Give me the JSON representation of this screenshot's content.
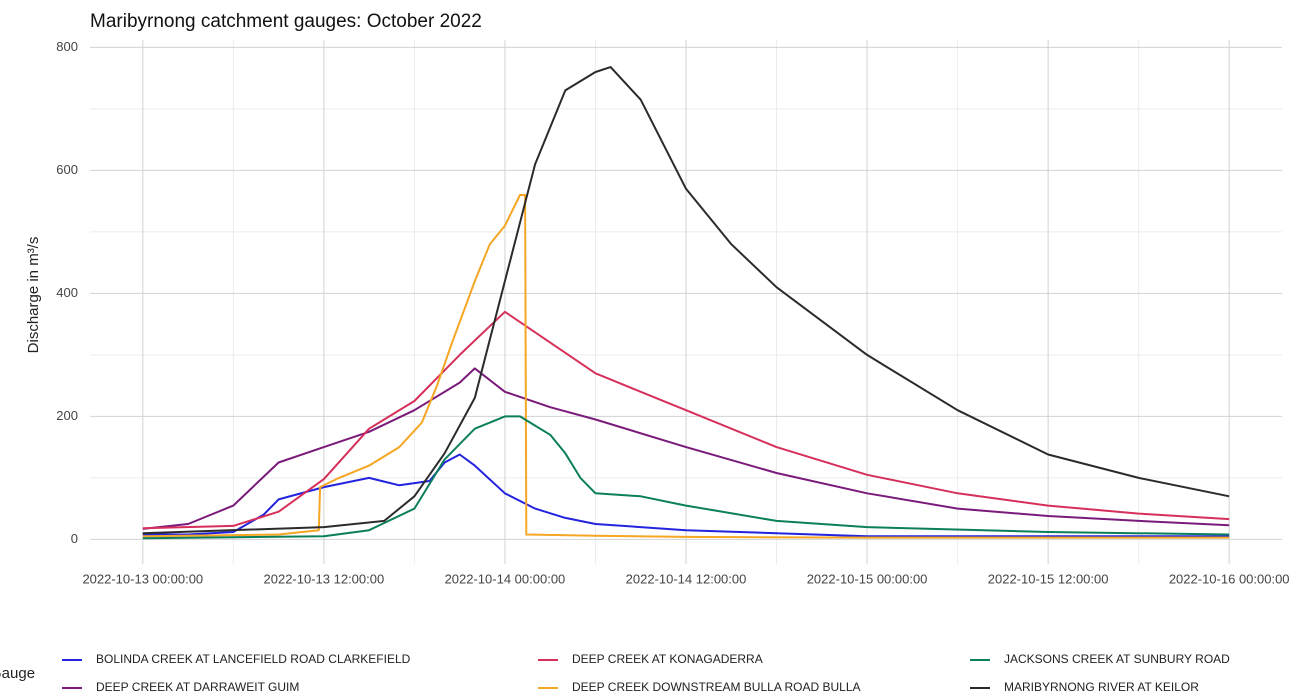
{
  "chart_data": {
    "type": "line",
    "title": "Maribyrnong catchment gauges: October 2022",
    "y_label": "Discharge in m³/s",
    "legend_title": "Gauge",
    "legend": "bottom",
    "grid": true,
    "xlim": [
      "2022-10-12 20:30:00",
      "2022-10-16 03:30:00"
    ],
    "xticks": [
      "2022-10-13 00:00:00",
      "2022-10-13 12:00:00",
      "2022-10-14 00:00:00",
      "2022-10-14 12:00:00",
      "2022-10-15 00:00:00",
      "2022-10-15 12:00:00",
      "2022-10-16 00:00:00"
    ],
    "ylim": [
      -40,
      812
    ],
    "yticks": [
      0,
      200,
      400,
      600,
      800
    ],
    "series": [
      {
        "name": "BOLINDA CREEK AT LANCEFIELD ROAD CLARKEFIELD",
        "color": "#2323e0",
        "x": [
          "2022-10-13 00:00:00",
          "2022-10-13 03:00:00",
          "2022-10-13 06:00:00",
          "2022-10-13 08:00:00",
          "2022-10-13 09:00:00",
          "2022-10-13 12:00:00",
          "2022-10-13 15:00:00",
          "2022-10-13 17:00:00",
          "2022-10-13 19:00:00",
          "2022-10-13 20:00:00",
          "2022-10-13 21:00:00",
          "2022-10-13 22:00:00",
          "2022-10-14 00:00:00",
          "2022-10-14 02:00:00",
          "2022-10-14 04:00:00",
          "2022-10-14 06:00:00",
          "2022-10-14 12:00:00",
          "2022-10-14 18:00:00",
          "2022-10-15 00:00:00",
          "2022-10-15 12:00:00",
          "2022-10-16 00:00:00"
        ],
        "values": [
          8,
          8,
          12,
          40,
          65,
          85,
          100,
          88,
          95,
          125,
          138,
          120,
          75,
          50,
          35,
          25,
          15,
          10,
          5,
          5,
          5
        ]
      },
      {
        "name": "DEEP CREEK AT DARRAWEIT GUIM",
        "color": "#7a1a7a",
        "x": [
          "2022-10-13 00:00:00",
          "2022-10-13 03:00:00",
          "2022-10-13 06:00:00",
          "2022-10-13 09:00:00",
          "2022-10-13 12:00:00",
          "2022-10-13 15:00:00",
          "2022-10-13 18:00:00",
          "2022-10-13 21:00:00",
          "2022-10-13 22:00:00",
          "2022-10-14 00:00:00",
          "2022-10-14 03:00:00",
          "2022-10-14 06:00:00",
          "2022-10-14 12:00:00",
          "2022-10-14 18:00:00",
          "2022-10-15 00:00:00",
          "2022-10-15 06:00:00",
          "2022-10-15 12:00:00",
          "2022-10-15 18:00:00",
          "2022-10-16 00:00:00"
        ],
        "values": [
          17,
          25,
          55,
          125,
          150,
          175,
          210,
          255,
          278,
          240,
          215,
          195,
          150,
          108,
          75,
          50,
          38,
          30,
          23
        ]
      },
      {
        "name": "DEEP CREEK AT KONAGADERRA",
        "color": "#d6305a",
        "x": [
          "2022-10-13 00:00:00",
          "2022-10-13 06:00:00",
          "2022-10-13 09:00:00",
          "2022-10-13 12:00:00",
          "2022-10-13 15:00:00",
          "2022-10-13 18:00:00",
          "2022-10-13 21:00:00",
          "2022-10-14 00:00:00",
          "2022-10-14 03:00:00",
          "2022-10-14 06:00:00",
          "2022-10-14 09:00:00",
          "2022-10-14 12:00:00",
          "2022-10-14 18:00:00",
          "2022-10-15 00:00:00",
          "2022-10-15 06:00:00",
          "2022-10-15 12:00:00",
          "2022-10-15 18:00:00",
          "2022-10-16 00:00:00"
        ],
        "values": [
          18,
          22,
          45,
          98,
          180,
          225,
          300,
          370,
          320,
          270,
          240,
          210,
          150,
          105,
          75,
          55,
          42,
          33
        ]
      },
      {
        "name": "DEEP CREEK DOWNSTREAM BULLA ROAD BULLA",
        "color": "#f5a623",
        "x": [
          "2022-10-13 00:00:00",
          "2022-10-13 09:00:00",
          "2022-10-13 11:40:00",
          "2022-10-13 11:45:00",
          "2022-10-13 13:00:00",
          "2022-10-13 15:00:00",
          "2022-10-13 17:00:00",
          "2022-10-13 18:30:00",
          "2022-10-13 19:30:00",
          "2022-10-13 20:30:00",
          "2022-10-13 22:00:00",
          "2022-10-13 23:00:00",
          "2022-10-14 00:00:00",
          "2022-10-14 01:00:00",
          "2022-10-14 01:20:00",
          "2022-10-14 01:25:00",
          "2022-10-14 06:00:00",
          "2022-10-14 12:00:00",
          "2022-10-15 00:00:00",
          "2022-10-16 00:00:00"
        ],
        "values": [
          5,
          8,
          15,
          85,
          100,
          120,
          150,
          190,
          250,
          320,
          420,
          480,
          510,
          560,
          560,
          8,
          6,
          4,
          3,
          3
        ]
      },
      {
        "name": "JACKSONS CREEK AT SUNBURY ROAD",
        "color": "#0b7f5c",
        "x": [
          "2022-10-13 00:00:00",
          "2022-10-13 12:00:00",
          "2022-10-13 15:00:00",
          "2022-10-13 18:00:00",
          "2022-10-13 20:00:00",
          "2022-10-13 22:00:00",
          "2022-10-14 00:00:00",
          "2022-10-14 01:00:00",
          "2022-10-14 02:00:00",
          "2022-10-14 03:00:00",
          "2022-10-14 04:00:00",
          "2022-10-14 05:00:00",
          "2022-10-14 06:00:00",
          "2022-10-14 09:00:00",
          "2022-10-14 12:00:00",
          "2022-10-14 18:00:00",
          "2022-10-15 00:00:00",
          "2022-10-15 12:00:00",
          "2022-10-16 00:00:00"
        ],
        "values": [
          2,
          5,
          15,
          50,
          130,
          180,
          200,
          200,
          185,
          170,
          140,
          100,
          75,
          70,
          55,
          30,
          20,
          12,
          8
        ]
      },
      {
        "name": "MARIBYRNONG RIVER AT KEILOR",
        "color": "#2b2b2b",
        "x": [
          "2022-10-13 00:00:00",
          "2022-10-13 12:00:00",
          "2022-10-13 16:00:00",
          "2022-10-13 18:00:00",
          "2022-10-13 20:00:00",
          "2022-10-13 22:00:00",
          "2022-10-14 00:00:00",
          "2022-10-14 02:00:00",
          "2022-10-14 04:00:00",
          "2022-10-14 06:00:00",
          "2022-10-14 07:00:00",
          "2022-10-14 09:00:00",
          "2022-10-14 12:00:00",
          "2022-10-14 15:00:00",
          "2022-10-14 18:00:00",
          "2022-10-15 00:00:00",
          "2022-10-15 06:00:00",
          "2022-10-15 12:00:00",
          "2022-10-15 18:00:00",
          "2022-10-16 00:00:00"
        ],
        "values": [
          10,
          20,
          30,
          70,
          140,
          230,
          420,
          610,
          730,
          760,
          768,
          715,
          570,
          480,
          410,
          300,
          210,
          138,
          100,
          70
        ]
      }
    ]
  }
}
